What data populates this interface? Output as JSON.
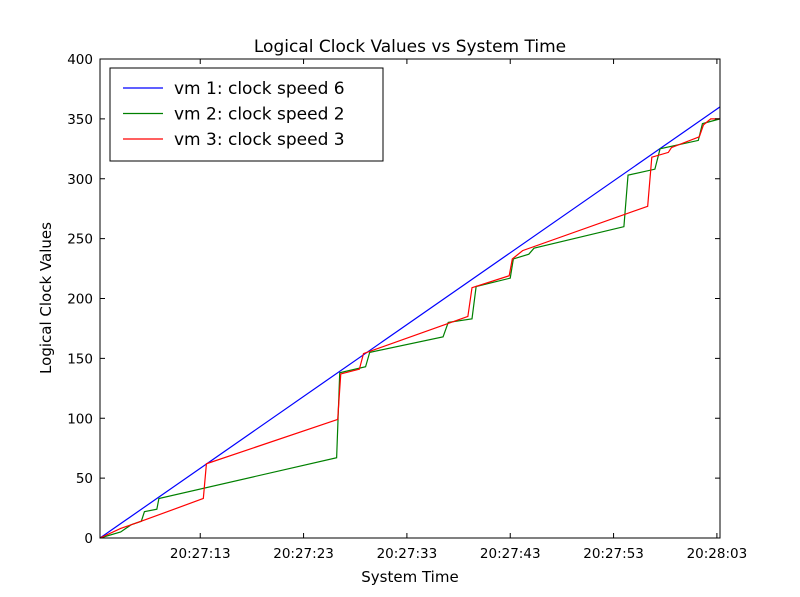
{
  "chart_data": {
    "type": "line",
    "title": "Logical Clock Values vs System Time",
    "xlabel": "System Time",
    "ylabel": "Logical Clock Values",
    "x_ticks": [
      {
        "t": 13,
        "label": "20:27:13"
      },
      {
        "t": 23,
        "label": "20:27:23"
      },
      {
        "t": 33,
        "label": "20:27:33"
      },
      {
        "t": 43,
        "label": "20:27:43"
      },
      {
        "t": 53,
        "label": "20:27:53"
      },
      {
        "t": 63,
        "label": "20:28:03"
      }
    ],
    "xlim": [
      3.3,
      63.3
    ],
    "ylim": [
      0,
      400
    ],
    "y_ticks": [
      0,
      50,
      100,
      150,
      200,
      250,
      300,
      350,
      400
    ],
    "grid": false,
    "legend_position": "top-left",
    "series": [
      {
        "name": "vm 1: clock speed 6",
        "color": "#0000ff",
        "x": [
          3.3,
          63.3
        ],
        "y": [
          0,
          360
        ]
      },
      {
        "name": "vm 2: clock speed 2",
        "color": "#008000",
        "x": [
          3.3,
          5.3,
          6.3,
          7.3,
          7.6,
          8.8,
          9.0,
          26.2,
          26.5,
          29.0,
          29.4,
          36.5,
          37.0,
          39.3,
          39.7,
          43.0,
          43.3,
          44.8,
          45.3,
          54.0,
          54.4,
          57.0,
          57.5,
          61.2,
          61.6,
          63.3
        ],
        "y": [
          0,
          5,
          11,
          14,
          22,
          24,
          33,
          67,
          138,
          143,
          155,
          168,
          180,
          183,
          210,
          217,
          233,
          237,
          242,
          260,
          303,
          308,
          325,
          332,
          346,
          350
        ]
      },
      {
        "name": "vm 3: clock speed 3",
        "color": "#ff0000",
        "x": [
          3.3,
          5.3,
          7.3,
          13.3,
          13.6,
          26.3,
          26.6,
          28.4,
          28.8,
          38.9,
          39.3,
          42.9,
          43.2,
          44.2,
          56.3,
          56.7,
          58.3,
          58.6,
          61.3,
          61.7,
          62.4,
          63.3
        ],
        "y": [
          0,
          8,
          14,
          33,
          62,
          99,
          137,
          141,
          154,
          185,
          209,
          219,
          233,
          240,
          277,
          318,
          322,
          326,
          335,
          345,
          350,
          350
        ]
      }
    ]
  }
}
